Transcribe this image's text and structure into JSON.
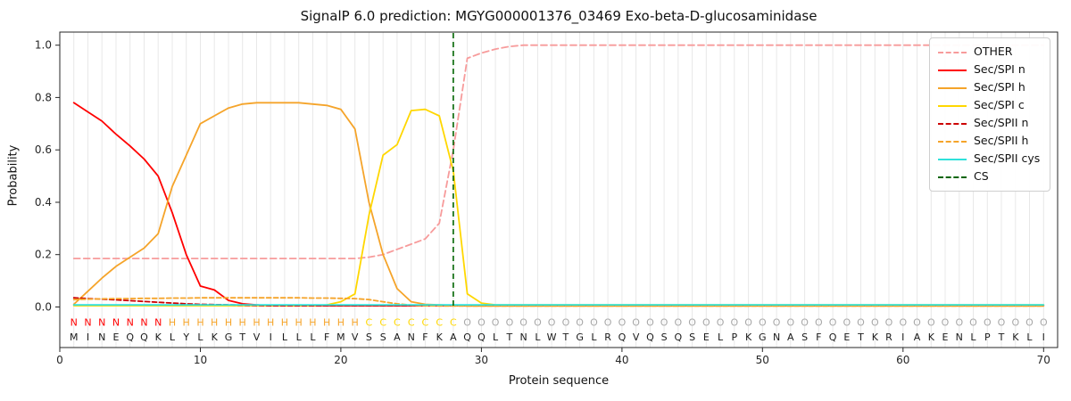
{
  "chart_data": {
    "type": "line",
    "title": "SignalP 6.0 prediction: MGYG000001376_03469 Exo-beta-D-glucosaminidase",
    "xlabel": "Protein sequence",
    "ylabel": "Probability",
    "xlim": [
      0,
      71
    ],
    "ylim": [
      -0.155,
      1.05
    ],
    "xticks": [
      0,
      10,
      20,
      30,
      40,
      50,
      60,
      70
    ],
    "yticks": [
      "0.0",
      "0.2",
      "0.4",
      "0.6",
      "0.8",
      "1.0"
    ],
    "grid": "vertical-line-per-residue",
    "legend_position": "upper right",
    "sequence": "MINEQQKLYLKGTVILLLFMVSSANFKAQQLTNLWTGLRQVQSQSELPKGNASFQETKRIAKENLPTKLI",
    "region_labels": "NNNNNNNHHHHHHHHHHHHHHCCCCCCCOOOOOOOOOOOOOOOOOOOOOOOOOOOOOOOOOOOOOOOOOO",
    "region_colors": {
      "N": "#ff0000",
      "H": "#f5a42a",
      "C": "#ffd700",
      "O": "#a8a8a8"
    },
    "cs": {
      "label": "CS",
      "x": 28,
      "color": "#006400",
      "dashed": true
    },
    "series": [
      {
        "name": "OTHER",
        "color": "#f79b9b",
        "dash": "7,4",
        "values": [
          0.185,
          0.185,
          0.185,
          0.185,
          0.185,
          0.185,
          0.185,
          0.185,
          0.185,
          0.185,
          0.185,
          0.185,
          0.185,
          0.185,
          0.185,
          0.185,
          0.185,
          0.185,
          0.185,
          0.185,
          0.185,
          0.19,
          0.2,
          0.22,
          0.24,
          0.26,
          0.32,
          0.6,
          0.95,
          0.97,
          0.985,
          0.995,
          1,
          1,
          1,
          1,
          1,
          1,
          1,
          1,
          1,
          1,
          1,
          1,
          1,
          1,
          1,
          1,
          1,
          1,
          1,
          1,
          1,
          1,
          1,
          1,
          1,
          1,
          1,
          1,
          1,
          1,
          1,
          1,
          1,
          1,
          1,
          1,
          1,
          1
        ]
      },
      {
        "name": "Sec/SPI n",
        "color": "#ff0000",
        "dash": null,
        "values": [
          0.78,
          0.745,
          0.71,
          0.66,
          0.615,
          0.565,
          0.5,
          0.36,
          0.2,
          0.08,
          0.065,
          0.025,
          0.012,
          0.008,
          0.005,
          0.005,
          0.005,
          0.005,
          0.005,
          0.005,
          0.005,
          0.005,
          0.005,
          0.005,
          0.005,
          0.005,
          0.005,
          0.005,
          0.005,
          0.005,
          0.005,
          0.005,
          0.005,
          0.005,
          0.005,
          0.005,
          0.005,
          0.005,
          0.005,
          0.005,
          0.005,
          0.005,
          0.005,
          0.005,
          0.005,
          0.005,
          0.005,
          0.005,
          0.005,
          0.005,
          0.005,
          0.005,
          0.005,
          0.005,
          0.005,
          0.005,
          0.005,
          0.005,
          0.005,
          0.005,
          0.005,
          0.005,
          0.005,
          0.005,
          0.005,
          0.005,
          0.005,
          0.005,
          0.005,
          0.005
        ]
      },
      {
        "name": "Sec/SPI h",
        "color": "#f5a42a",
        "dash": null,
        "values": [
          0.01,
          0.06,
          0.11,
          0.155,
          0.19,
          0.225,
          0.28,
          0.46,
          0.58,
          0.7,
          0.73,
          0.76,
          0.775,
          0.78,
          0.78,
          0.78,
          0.78,
          0.775,
          0.77,
          0.755,
          0.68,
          0.4,
          0.2,
          0.07,
          0.02,
          0.01,
          0.008,
          0.006,
          0.004,
          0.004,
          0.004,
          0.004,
          0.004,
          0.004,
          0.004,
          0.004,
          0.004,
          0.004,
          0.004,
          0.004,
          0.004,
          0.004,
          0.004,
          0.004,
          0.004,
          0.004,
          0.004,
          0.004,
          0.004,
          0.004,
          0.004,
          0.004,
          0.004,
          0.004,
          0.004,
          0.004,
          0.004,
          0.004,
          0.004,
          0.004,
          0.004,
          0.004,
          0.004,
          0.004,
          0.004,
          0.004,
          0.004,
          0.004,
          0.004,
          0.004
        ]
      },
      {
        "name": "Sec/SPI c",
        "color": "#ffd700",
        "dash": null,
        "values": [
          0.005,
          0.005,
          0.005,
          0.005,
          0.005,
          0.005,
          0.005,
          0.005,
          0.005,
          0.005,
          0.005,
          0.005,
          0.005,
          0.005,
          0.005,
          0.005,
          0.005,
          0.005,
          0.008,
          0.02,
          0.05,
          0.35,
          0.58,
          0.62,
          0.75,
          0.755,
          0.73,
          0.52,
          0.05,
          0.015,
          0.008,
          0.008,
          0.008,
          0.008,
          0.008,
          0.008,
          0.008,
          0.008,
          0.008,
          0.008,
          0.008,
          0.008,
          0.008,
          0.008,
          0.008,
          0.008,
          0.008,
          0.008,
          0.008,
          0.008,
          0.008,
          0.008,
          0.008,
          0.008,
          0.008,
          0.008,
          0.008,
          0.008,
          0.008,
          0.008,
          0.008,
          0.008,
          0.008,
          0.008,
          0.008,
          0.008,
          0.008,
          0.008,
          0.008,
          0.008
        ]
      },
      {
        "name": "Sec/SPII n",
        "color": "#cc0000",
        "dash": "5,3",
        "values": [
          0.035,
          0.032,
          0.03,
          0.027,
          0.024,
          0.021,
          0.018,
          0.015,
          0.012,
          0.01,
          0.009,
          0.008,
          0.007,
          0.006,
          0.005,
          0.005,
          0.005,
          0.005,
          0.005,
          0.005,
          0.005,
          0.005,
          0.005,
          0.005,
          0.005,
          0.005,
          0.005,
          0.005,
          0.005,
          0.005,
          0.005,
          0.005,
          0.005,
          0.005,
          0.005,
          0.005,
          0.005,
          0.005,
          0.005,
          0.005,
          0.005,
          0.005,
          0.005,
          0.005,
          0.005,
          0.005,
          0.005,
          0.005,
          0.005,
          0.005,
          0.005,
          0.005,
          0.005,
          0.005,
          0.005,
          0.005,
          0.005,
          0.005,
          0.005,
          0.005,
          0.005,
          0.005,
          0.005,
          0.005,
          0.005,
          0.005,
          0.005,
          0.005,
          0.005,
          0.005
        ]
      },
      {
        "name": "Sec/SPII h",
        "color": "#f5a42a",
        "dash": "5,3",
        "values": [
          0.028,
          0.03,
          0.031,
          0.032,
          0.032,
          0.033,
          0.033,
          0.034,
          0.034,
          0.035,
          0.035,
          0.035,
          0.035,
          0.035,
          0.035,
          0.035,
          0.035,
          0.034,
          0.034,
          0.033,
          0.032,
          0.028,
          0.02,
          0.012,
          0.007,
          0.005,
          0.004,
          0.004,
          0.004,
          0.004,
          0.004,
          0.004,
          0.004,
          0.004,
          0.004,
          0.004,
          0.004,
          0.004,
          0.004,
          0.004,
          0.004,
          0.004,
          0.004,
          0.004,
          0.004,
          0.004,
          0.004,
          0.004,
          0.004,
          0.004,
          0.004,
          0.004,
          0.004,
          0.004,
          0.004,
          0.004,
          0.004,
          0.004,
          0.004,
          0.004,
          0.004,
          0.004,
          0.004,
          0.004,
          0.004,
          0.004,
          0.004,
          0.004,
          0.004,
          0.004
        ]
      },
      {
        "name": "Sec/SPII cys",
        "color": "#2fe1db",
        "dash": null,
        "values": [
          0.008,
          0.008,
          0.008,
          0.008,
          0.008,
          0.008,
          0.008,
          0.008,
          0.008,
          0.008,
          0.008,
          0.008,
          0.008,
          0.008,
          0.008,
          0.008,
          0.008,
          0.008,
          0.008,
          0.008,
          0.008,
          0.008,
          0.008,
          0.008,
          0.008,
          0.008,
          0.008,
          0.008,
          0.008,
          0.008,
          0.008,
          0.008,
          0.008,
          0.008,
          0.008,
          0.008,
          0.008,
          0.008,
          0.008,
          0.008,
          0.008,
          0.008,
          0.008,
          0.008,
          0.008,
          0.008,
          0.008,
          0.008,
          0.008,
          0.008,
          0.008,
          0.008,
          0.008,
          0.008,
          0.008,
          0.008,
          0.008,
          0.008,
          0.008,
          0.008,
          0.008,
          0.008,
          0.008,
          0.008,
          0.008,
          0.008,
          0.008,
          0.008,
          0.008,
          0.008
        ]
      }
    ]
  }
}
